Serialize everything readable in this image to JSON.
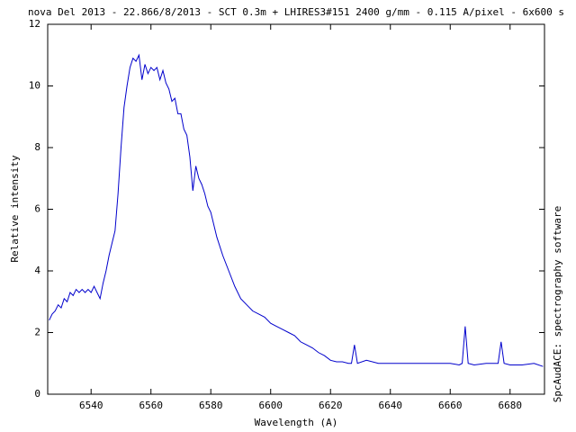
{
  "chart_data": {
    "type": "line",
    "title": "nova Del 2013 - 22.866/8/2013 - SCT 0.3m + LHIRES3#151 2400 g/mm - 0.115 A/pixel - 6x600 s",
    "x_label": "Wavelength (A)",
    "y_label": "Relative intensity",
    "right_label": "SpcAudACE: spectrography software",
    "xlim": [
      6525.5,
      6691.5
    ],
    "ylim": [
      0,
      12
    ],
    "xticks": [
      6540,
      6560,
      6580,
      6600,
      6620,
      6640,
      6660,
      6680
    ],
    "yticks": [
      0,
      2,
      4,
      6,
      8,
      10,
      12
    ],
    "series": [
      {
        "color": "#0000cc",
        "x": [
          6526,
          6527,
          6528,
          6529,
          6530,
          6531,
          6532,
          6533,
          6534,
          6535,
          6536,
          6537,
          6538,
          6539,
          6540,
          6541,
          6542,
          6543,
          6544,
          6545,
          6546,
          6547,
          6548,
          6549,
          6550,
          6551,
          6552,
          6553,
          6554,
          6555,
          6556,
          6557,
          6558,
          6559,
          6560,
          6561,
          6562,
          6563,
          6564,
          6565,
          6566,
          6567,
          6568,
          6569,
          6570,
          6571,
          6572,
          6573,
          6574,
          6575,
          6576,
          6577,
          6578,
          6579,
          6580,
          6582,
          6584,
          6586,
          6588,
          6590,
          6592,
          6594,
          6596,
          6598,
          6600,
          6602,
          6604,
          6606,
          6608,
          6610,
          6612,
          6614,
          6616,
          6618,
          6620,
          6622,
          6624,
          6626,
          6627,
          6628,
          6629,
          6632,
          6636,
          6640,
          6644,
          6648,
          6652,
          6656,
          6660,
          6663,
          6664,
          6665,
          6666,
          6668,
          6672,
          6675,
          6676,
          6677,
          6678,
          6680,
          6684,
          6688,
          6691
        ],
        "values": [
          2.4,
          2.6,
          2.7,
          2.9,
          2.8,
          3.1,
          3.0,
          3.3,
          3.2,
          3.4,
          3.3,
          3.4,
          3.3,
          3.4,
          3.3,
          3.5,
          3.3,
          3.1,
          3.6,
          4.0,
          4.5,
          4.9,
          5.3,
          6.5,
          8.0,
          9.3,
          10.0,
          10.6,
          10.9,
          10.8,
          11.0,
          10.2,
          10.7,
          10.4,
          10.6,
          10.5,
          10.6,
          10.2,
          10.5,
          10.1,
          9.9,
          9.5,
          9.6,
          9.1,
          9.1,
          8.6,
          8.4,
          7.7,
          6.6,
          7.4,
          7.0,
          6.8,
          6.5,
          6.1,
          5.9,
          5.1,
          4.5,
          4.0,
          3.5,
          3.1,
          2.9,
          2.7,
          2.6,
          2.5,
          2.3,
          2.2,
          2.1,
          2.0,
          1.9,
          1.7,
          1.6,
          1.5,
          1.35,
          1.25,
          1.1,
          1.05,
          1.05,
          1.0,
          1.0,
          1.6,
          1.0,
          1.1,
          1.0,
          1.0,
          1.0,
          1.0,
          1.0,
          1.0,
          1.0,
          0.95,
          1.0,
          2.2,
          1.0,
          0.95,
          1.0,
          1.0,
          1.0,
          1.7,
          1.0,
          0.95,
          0.95,
          1.0,
          0.9
        ]
      }
    ]
  }
}
